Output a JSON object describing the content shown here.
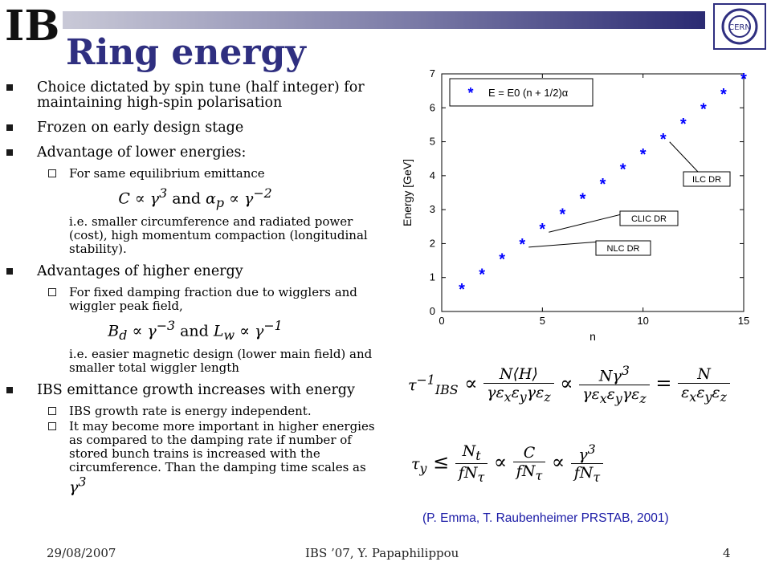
{
  "slide": {
    "title": "Ring energy",
    "logo_text": "IBS",
    "cern_logo_text": "CERN"
  },
  "bullets": {
    "b1": "Choice dictated by spin tune (half integer) for maintaining high-spin polarisation",
    "b2": "Frozen on early design stage",
    "b3": "Advantage of lower energies:",
    "b3_sub1": "For same equilibrium emittance",
    "b3_cont": "i.e. smaller circumference and radiated power (cost), high momentum compaction (longitudinal stability).",
    "b4": "Advantages of higher energy",
    "b4_sub1": "For fixed damping fraction due to wigglers and wiggler peak field,",
    "b4_cont": "i.e. easier magnetic design (lower main field) and smaller total wiggler length",
    "b5": "IBS emittance growth increases  with energy",
    "b5_sub1": "IBS growth rate is energy independent.",
    "b5_sub2": "It may become more important in higher energies as compared to the damping rate if number of stored bunch trains is increased with the circumference. Than the damping time scales as"
  },
  "math": {
    "and": "and"
  },
  "chart_data": {
    "type": "scatter",
    "x": [
      1,
      2,
      3,
      4,
      5,
      6,
      7,
      8,
      9,
      10,
      11,
      12,
      13,
      14,
      15
    ],
    "y": [
      0.66,
      1.1,
      1.55,
      1.99,
      2.43,
      2.87,
      3.32,
      3.76,
      4.2,
      4.64,
      5.09,
      5.53,
      5.97,
      6.41,
      6.86
    ],
    "xlabel": "n",
    "ylabel": "Energy [GeV]",
    "xlim": [
      0,
      15
    ],
    "ylim": [
      0,
      7
    ],
    "xticks": [
      "0",
      "5",
      "10",
      "15"
    ],
    "yticks": [
      "0",
      "1",
      "2",
      "3",
      "4",
      "5",
      "6",
      "7"
    ],
    "marker_color": "#0000ff",
    "legend": "E = E0 (n + 1/2)α",
    "annotations": [
      {
        "text": "ILC DR",
        "n": 11
      },
      {
        "text": "CLIC DR",
        "n": 5
      },
      {
        "text": "NLC DR",
        "n": 4
      }
    ]
  },
  "reference": "(P. Emma, T. Raubenheimer PRSTAB, 2001)",
  "footer": {
    "date": "29/08/2007",
    "center": "IBS ’07,  Y. Papaphilippou",
    "page": "4"
  }
}
